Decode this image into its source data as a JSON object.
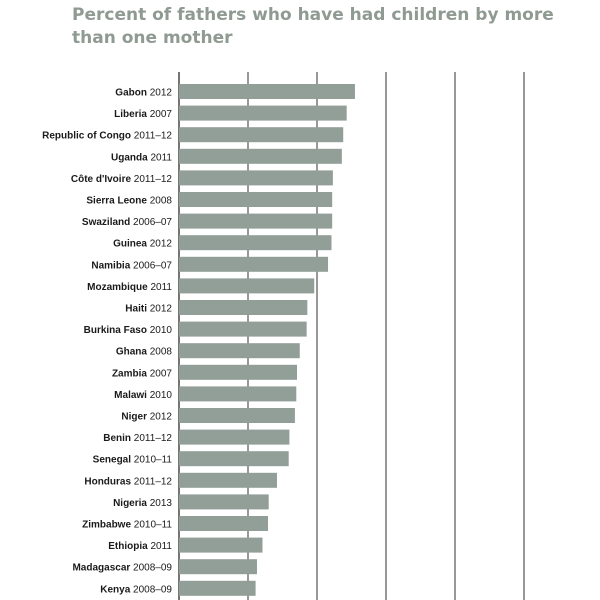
{
  "chart_data": {
    "type": "bar",
    "orientation": "horizontal",
    "title": "Percent of fathers who have had children by more than one mother",
    "categories": [
      {
        "name": "Gabon",
        "year": "2012"
      },
      {
        "name": "Liberia",
        "year": "2007"
      },
      {
        "name": "Republic of Congo",
        "year": "2011–12"
      },
      {
        "name": "Uganda",
        "year": "2011"
      },
      {
        "name": "Côte d'Ivoire",
        "year": "2011–12"
      },
      {
        "name": "Sierra Leone",
        "year": "2008"
      },
      {
        "name": "Swaziland",
        "year": "2006–07"
      },
      {
        "name": "Guinea",
        "year": "2012"
      },
      {
        "name": "Namibia",
        "year": "2006–07"
      },
      {
        "name": "Mozambique",
        "year": "2011"
      },
      {
        "name": "Haiti",
        "year": "2012"
      },
      {
        "name": "Burkina Faso",
        "year": "2010"
      },
      {
        "name": "Ghana",
        "year": "2008"
      },
      {
        "name": "Zambia",
        "year": "2007"
      },
      {
        "name": "Malawi",
        "year": "2010"
      },
      {
        "name": "Niger",
        "year": "2012"
      },
      {
        "name": "Benin",
        "year": "2011–12"
      },
      {
        "name": "Senegal",
        "year": "2010–11"
      },
      {
        "name": "Honduras",
        "year": "2011–12"
      },
      {
        "name": "Nigeria",
        "year": "2013"
      },
      {
        "name": "Zimbabwe",
        "year": "2010–11"
      },
      {
        "name": "Ethiopia",
        "year": "2011"
      },
      {
        "name": "Madagascar",
        "year": "2008–09"
      },
      {
        "name": "Kenya",
        "year": "2008–09"
      }
    ],
    "values": [
      25.5,
      24.3,
      23.8,
      23.6,
      22.3,
      22.2,
      22.2,
      22.1,
      21.6,
      19.6,
      18.6,
      18.5,
      17.5,
      17.1,
      17.0,
      16.8,
      16.0,
      15.9,
      14.2,
      13.0,
      12.9,
      12.1,
      11.3,
      11.1
    ],
    "xlim": [
      0,
      50
    ],
    "gridlines": [
      10,
      20,
      30,
      40,
      50
    ],
    "grid": true,
    "colors": {
      "bar": "#929e98",
      "title": "#8f9a92",
      "grid": "#1a1a1a"
    }
  }
}
